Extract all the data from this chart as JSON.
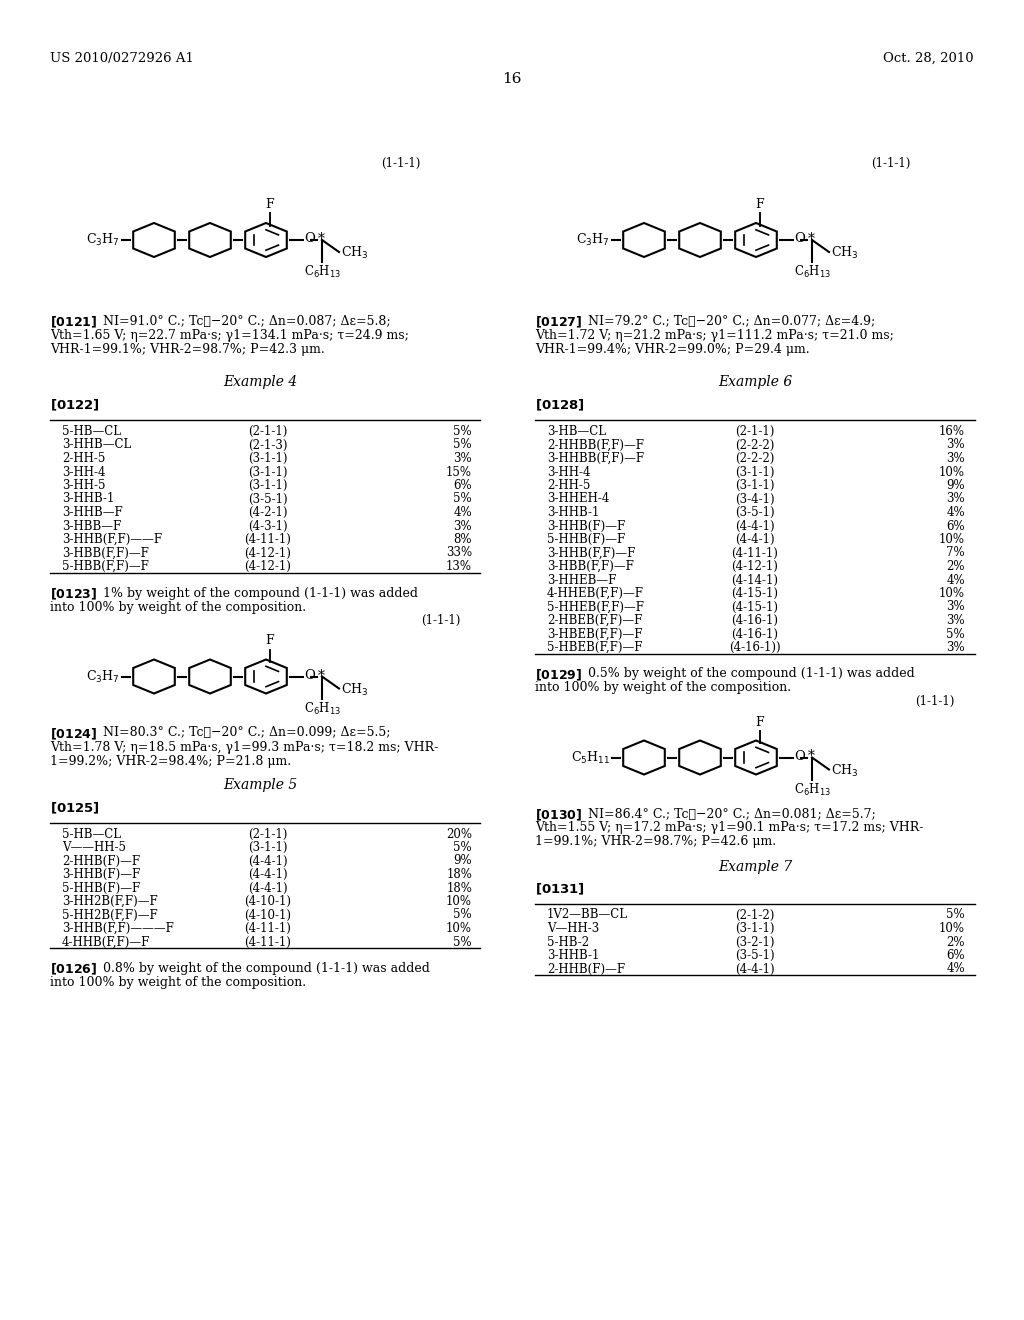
{
  "header_left": "US 2010/0272926 A1",
  "header_right": "Oct. 28, 2010",
  "page_number": "16",
  "bg_color": "#ffffff",
  "example4_title": "Example 4",
  "example5_title": "Example 5",
  "example6_title": "Example 6",
  "example7_title": "Example 7",
  "table4": [
    [
      "5-HB—CL",
      "(2-1-1)",
      "5%"
    ],
    [
      "3-HHB—CL",
      "(2-1-3)",
      "5%"
    ],
    [
      "2-HH-5",
      "(3-1-1)",
      "3%"
    ],
    [
      "3-HH-4",
      "(3-1-1)",
      "15%"
    ],
    [
      "3-HH-5",
      "(3-1-1)",
      "6%"
    ],
    [
      "3-HHB-1",
      "(3-5-1)",
      "5%"
    ],
    [
      "3-HHB—F",
      "(4-2-1)",
      "4%"
    ],
    [
      "3-HBB—F",
      "(4-3-1)",
      "3%"
    ],
    [
      "3-HHB(F,F)——F",
      "(4-11-1)",
      "8%"
    ],
    [
      "3-HBB(F,F)—F",
      "(4-12-1)",
      "33%"
    ],
    [
      "5-HBB(F,F)—F",
      "(4-12-1)",
      "13%"
    ]
  ],
  "table5": [
    [
      "5-HB—CL",
      "(2-1-1)",
      "20%"
    ],
    [
      "V——HH-5",
      "(3-1-1)",
      "5%"
    ],
    [
      "2-HHB(F)—F",
      "(4-4-1)",
      "9%"
    ],
    [
      "3-HHB(F)—F",
      "(4-4-1)",
      "18%"
    ],
    [
      "5-HHB(F)—F",
      "(4-4-1)",
      "18%"
    ],
    [
      "3-HH2B(F,F)—F",
      "(4-10-1)",
      "10%"
    ],
    [
      "5-HH2B(F,F)—F",
      "(4-10-1)",
      "5%"
    ],
    [
      "3-HHB(F,F)———F",
      "(4-11-1)",
      "10%"
    ],
    [
      "4-HHB(F,F)—F",
      "(4-11-1)",
      "5%"
    ]
  ],
  "table6": [
    [
      "3-HB—CL",
      "(2-1-1)",
      "16%"
    ],
    [
      "2-HHBB(F,F)—F",
      "(2-2-2)",
      "3%"
    ],
    [
      "3-HHBB(F,F)—F",
      "(2-2-2)",
      "3%"
    ],
    [
      "3-HH-4",
      "(3-1-1)",
      "10%"
    ],
    [
      "2-HH-5",
      "(3-1-1)",
      "9%"
    ],
    [
      "3-HHEH-4",
      "(3-4-1)",
      "3%"
    ],
    [
      "3-HHB-1",
      "(3-5-1)",
      "4%"
    ],
    [
      "3-HHB(F)—F",
      "(4-4-1)",
      "6%"
    ],
    [
      "5-HHB(F)—F",
      "(4-4-1)",
      "10%"
    ],
    [
      "3-HHB(F,F)—F",
      "(4-11-1)",
      "7%"
    ],
    [
      "3-HBB(F,F)—F",
      "(4-12-1)",
      "2%"
    ],
    [
      "3-HHEB—F",
      "(4-14-1)",
      "4%"
    ],
    [
      "4-HHEB(F,F)—F",
      "(4-15-1)",
      "10%"
    ],
    [
      "5-HHEB(F,F)—F",
      "(4-15-1)",
      "3%"
    ],
    [
      "2-HBEB(F,F)—F",
      "(4-16-1)",
      "3%"
    ],
    [
      "3-HBEB(F,F)—F",
      "(4-16-1)",
      "5%"
    ],
    [
      "5-HBEB(F,F)—F",
      "(4-16-1))",
      "3%"
    ]
  ],
  "table7": [
    [
      "1V2—BB—CL",
      "(2-1-2)",
      "5%"
    ],
    [
      "V—HH-3",
      "(3-1-1)",
      "10%"
    ],
    [
      "5-HB-2",
      "(3-2-1)",
      "2%"
    ],
    [
      "3-HHB-1",
      "(3-5-1)",
      "6%"
    ],
    [
      "2-HHB(F)—F",
      "(4-4-1)",
      "4%"
    ]
  ],
  "mol1_label": "(1-1-1)",
  "mol1_group": "C₃H₇",
  "mol1_o": "O",
  "mol1_star": "*",
  "mol1_ch3": "CH₃",
  "mol1_c6": "C₆H₁₃",
  "mol1_f": "F",
  "mol5_group": "C₅H₁₁"
}
